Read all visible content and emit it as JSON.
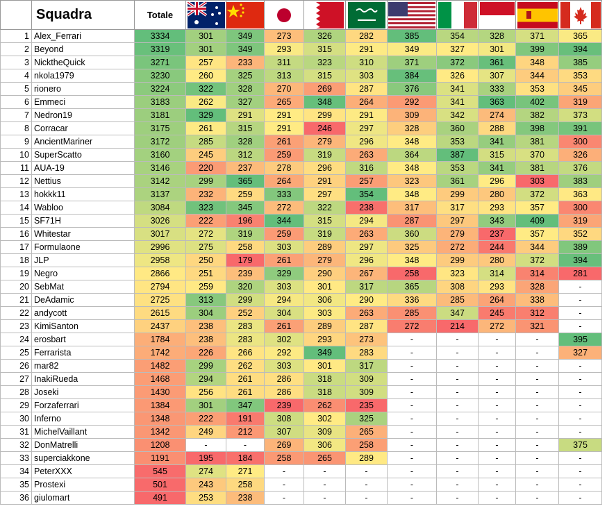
{
  "table": {
    "header": {
      "name": "Squadra",
      "total": "Totale"
    },
    "rows": [
      [
        1,
        "Alex_Ferrari",
        3334,
        301,
        349,
        273,
        326,
        282,
        385,
        354,
        328,
        371,
        365
      ],
      [
        2,
        "Beyond",
        3319,
        301,
        349,
        293,
        315,
        291,
        349,
        327,
        301,
        399,
        394
      ],
      [
        3,
        "NicktheQuick",
        3271,
        257,
        233,
        311,
        323,
        310,
        371,
        372,
        361,
        348,
        385
      ],
      [
        4,
        "nkola1979",
        3230,
        260,
        325,
        313,
        315,
        303,
        384,
        326,
        307,
        344,
        353
      ],
      [
        5,
        "rionero",
        3224,
        322,
        328,
        270,
        269,
        287,
        376,
        341,
        333,
        353,
        345
      ],
      [
        6,
        "Emmeci",
        3183,
        262,
        327,
        265,
        348,
        264,
        292,
        341,
        363,
        402,
        319
      ],
      [
        7,
        "Nedron19",
        3181,
        329,
        291,
        291,
        299,
        291,
        309,
        342,
        274,
        382,
        373
      ],
      [
        8,
        "Corracar",
        3175,
        261,
        315,
        291,
        246,
        297,
        328,
        360,
        288,
        398,
        391
      ],
      [
        9,
        "AncientMariner",
        3172,
        285,
        328,
        261,
        279,
        296,
        348,
        353,
        341,
        381,
        300
      ],
      [
        10,
        "SuperScatto",
        3160,
        245,
        312,
        259,
        319,
        263,
        364,
        387,
        315,
        370,
        326
      ],
      [
        11,
        "AUA-19",
        3146,
        220,
        237,
        278,
        296,
        316,
        348,
        353,
        341,
        381,
        376
      ],
      [
        12,
        "Nettius",
        3142,
        299,
        365,
        264,
        291,
        257,
        323,
        361,
        296,
        303,
        383
      ],
      [
        13,
        "hokkk11",
        3137,
        232,
        259,
        333,
        297,
        354,
        348,
        299,
        280,
        372,
        363
      ],
      [
        14,
        "Wabloo",
        3084,
        323,
        345,
        272,
        322,
        238,
        317,
        317,
        293,
        357,
        300
      ],
      [
        15,
        "SF71H",
        3026,
        222,
        196,
        344,
        315,
        294,
        287,
        297,
        343,
        409,
        319
      ],
      [
        16,
        "Whitestar",
        3017,
        272,
        319,
        259,
        319,
        263,
        360,
        279,
        237,
        357,
        352
      ],
      [
        17,
        "Formulaone",
        2996,
        275,
        258,
        303,
        289,
        297,
        325,
        272,
        244,
        344,
        389
      ],
      [
        18,
        "JLP",
        2958,
        250,
        179,
        261,
        279,
        296,
        348,
        299,
        280,
        372,
        394
      ],
      [
        19,
        "Negro",
        2866,
        251,
        239,
        329,
        290,
        267,
        258,
        323,
        314,
        314,
        281
      ],
      [
        20,
        "SebMat",
        2794,
        259,
        320,
        303,
        301,
        317,
        365,
        308,
        293,
        328,
        "-"
      ],
      [
        21,
        "DeAdamic",
        2725,
        313,
        299,
        294,
        306,
        290,
        336,
        285,
        264,
        338,
        "-"
      ],
      [
        22,
        "andycott",
        2615,
        304,
        252,
        304,
        303,
        263,
        285,
        347,
        245,
        312,
        "-"
      ],
      [
        23,
        "KimiSanton",
        2437,
        238,
        283,
        261,
        289,
        287,
        272,
        214,
        272,
        321,
        "-"
      ],
      [
        24,
        "erosbart",
        1784,
        238,
        283,
        302,
        293,
        273,
        "-",
        "-",
        "-",
        "-",
        395
      ],
      [
        25,
        "Ferrarista",
        1742,
        226,
        266,
        292,
        349,
        283,
        "-",
        "-",
        "-",
        "-",
        327
      ],
      [
        26,
        "mar82",
        1482,
        299,
        262,
        303,
        301,
        317,
        "-",
        "-",
        "-",
        "-",
        "-"
      ],
      [
        27,
        "InakiRueda",
        1468,
        294,
        261,
        286,
        318,
        309,
        "-",
        "-",
        "-",
        "-",
        "-"
      ],
      [
        28,
        "Joseki",
        1430,
        256,
        261,
        286,
        318,
        309,
        "-",
        "-",
        "-",
        "-",
        "-"
      ],
      [
        29,
        "Forzaferrari",
        1384,
        301,
        347,
        239,
        262,
        235,
        "-",
        "-",
        "-",
        "-",
        "-"
      ],
      [
        30,
        "Inferno",
        1348,
        222,
        191,
        308,
        302,
        325,
        "-",
        "-",
        "-",
        "-",
        "-"
      ],
      [
        31,
        "MichelVaillant",
        1342,
        249,
        212,
        307,
        309,
        265,
        "-",
        "-",
        "-",
        "-",
        "-"
      ],
      [
        32,
        "DonMatrelli",
        1208,
        "-",
        "-",
        269,
        306,
        258,
        "-",
        "-",
        "-",
        "-",
        375
      ],
      [
        33,
        "superciakkone",
        1191,
        195,
        184,
        258,
        265,
        289,
        "-",
        "-",
        "-",
        "-",
        "-"
      ],
      [
        34,
        "PeterXXX",
        545,
        274,
        271,
        "-",
        "-",
        "-",
        "-",
        "-",
        "-",
        "-",
        "-"
      ],
      [
        35,
        "Prostexi",
        501,
        243,
        258,
        "-",
        "-",
        "-",
        "-",
        "-",
        "-",
        "-",
        "-"
      ],
      [
        36,
        "giulomart",
        491,
        253,
        238,
        "-",
        "-",
        "-",
        "-",
        "-",
        "-",
        "-",
        "-"
      ]
    ]
  }
}
